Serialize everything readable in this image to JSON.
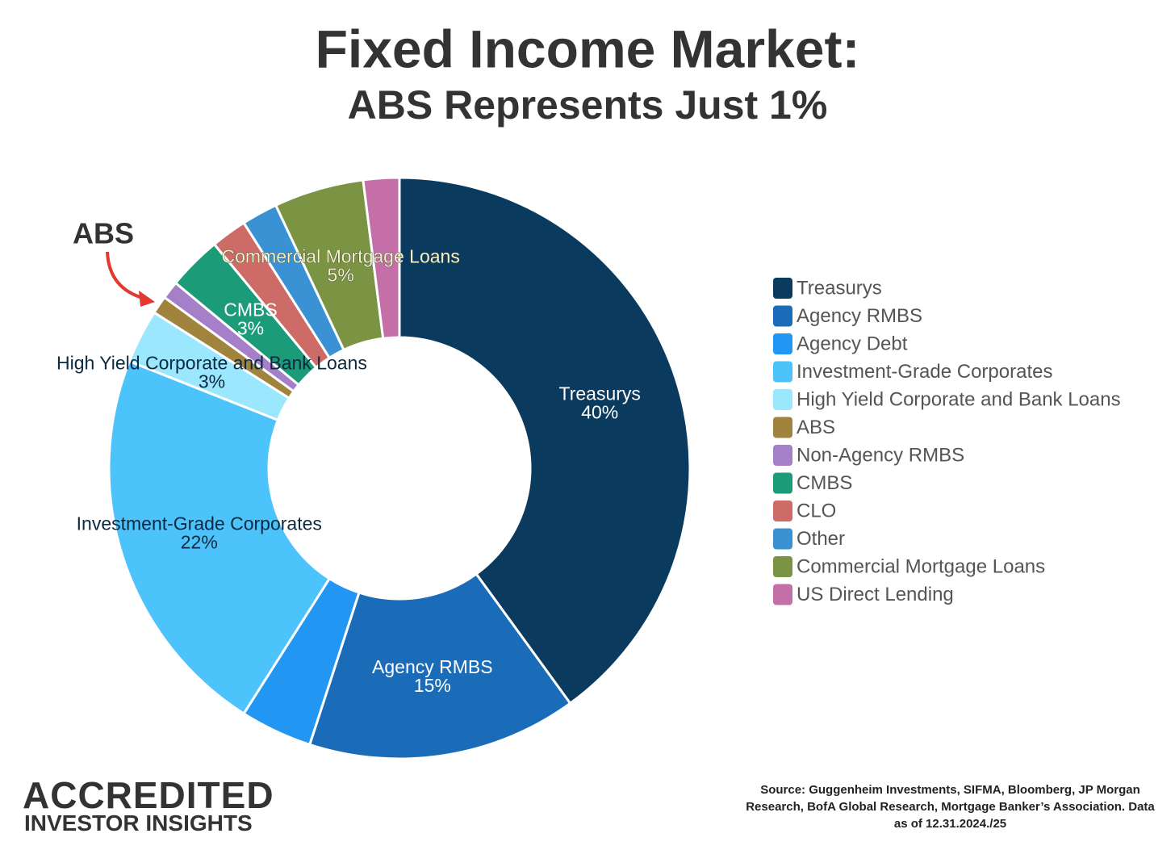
{
  "header": {
    "title": "Fixed Income Market:",
    "subtitle": "ABS Represents Just 1%"
  },
  "chart_data": {
    "type": "donut",
    "categories": [
      "Treasurys",
      "Agency RMBS",
      "Agency Debt",
      "Investment-Grade Corporates",
      "High Yield Corporate and Bank Loans",
      "ABS",
      "Non-Agency RMBS",
      "CMBS",
      "CLO",
      "Other",
      "Commercial Mortgage Loans",
      "US Direct Lending"
    ],
    "values": [
      40,
      15,
      4,
      22,
      3,
      1,
      1,
      3,
      2,
      2,
      5,
      2
    ],
    "value_labels": [
      "40%",
      "15%",
      null,
      "22%",
      "3%",
      null,
      null,
      "3%",
      null,
      null,
      "5%",
      null
    ],
    "colors": [
      "#0b3a5f",
      "#1a6bb8",
      "#2196f3",
      "#4dc3fb",
      "#9be7fd",
      "#a0843e",
      "#a67fc9",
      "#1c9b78",
      "#cd6b66",
      "#3a92d4",
      "#7b9443",
      "#c46fa8"
    ],
    "annotation": "ABS",
    "legend": "right"
  },
  "branding": {
    "line1": "ACCREDITED",
    "line2": "INVESTOR INSIGHTS"
  },
  "source": "Source: Guggenheim Investments, SIFMA, Bloomberg, JP Morgan Research, BofA Global Research, Mortgage Banker’s Association. Data as of 12.31.2024./25"
}
